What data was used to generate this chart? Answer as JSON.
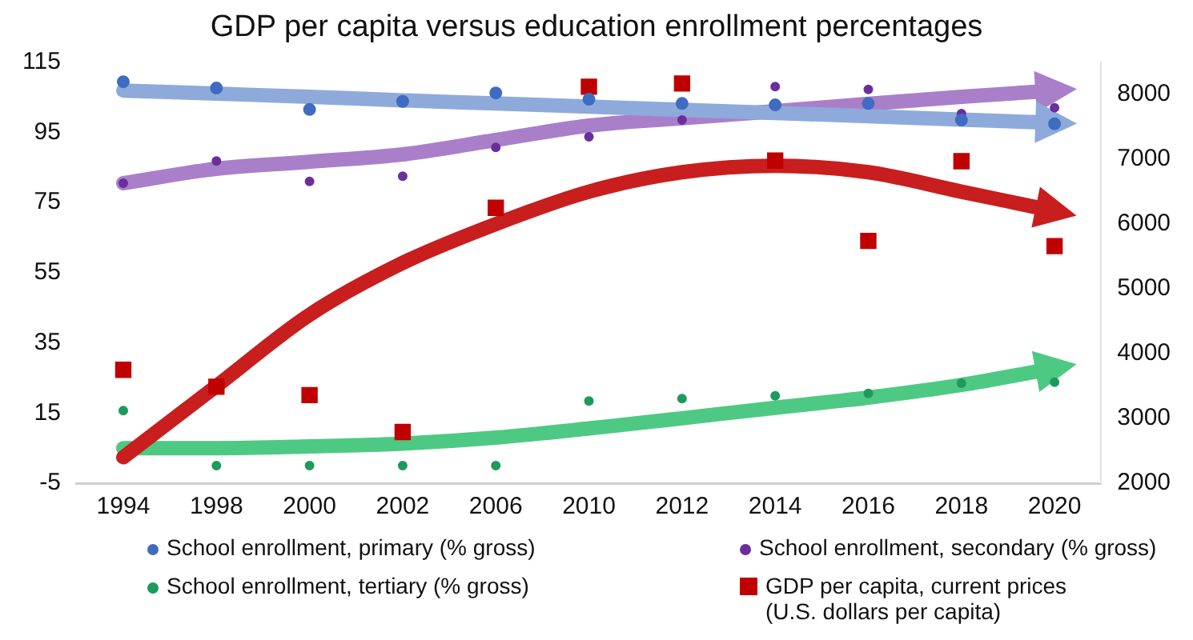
{
  "chart_data": {
    "type": "scatter",
    "title": "GDP per capita versus education enrollment percentages",
    "categories": [
      "1994",
      "1998",
      "2000",
      "2002",
      "2006",
      "2010",
      "2012",
      "2014",
      "2016",
      "2018",
      "2020"
    ],
    "series": [
      {
        "name": "School enrollment, primary (% gross)",
        "color": "#3f6cc0",
        "marker": "circle",
        "values": [
          109.4,
          107.6,
          101.5,
          103.8,
          106.2,
          104.4,
          103.2,
          102.8,
          103.2,
          98.5,
          97.4
        ]
      },
      {
        "name": "School enrollment, secondary (% gross)",
        "color": "#6a2f9c",
        "marker": "circle",
        "values": [
          80.5,
          86.8,
          81,
          82.5,
          90.7,
          93.7,
          98.5,
          108,
          107.2,
          100.3,
          102
        ]
      },
      {
        "name": "School enrollment, tertiary (% gross)",
        "color": "#1e9a5a",
        "marker": "circle",
        "values": [
          15.7,
          0,
          0,
          0,
          0,
          18.4,
          19.1,
          19.9,
          20.6,
          23.5,
          23.8
        ]
      },
      {
        "name": "GDP per capita, current prices (U.S. dollars per capita)",
        "color": "#c00000",
        "marker": "square",
        "axis": "y2",
        "values": [
          3750,
          3490,
          3360,
          2790,
          6250,
          8120,
          8170,
          6980,
          5740,
          6970,
          5660
        ]
      },
      {
        "type": "line",
        "color": "#8eaadb",
        "marker": "none",
        "values": [
          106.9,
          106,
          105.1,
          104.1,
          103.2,
          102.3,
          101.4,
          100.5,
          99.6,
          98.6,
          97.7
        ]
      },
      {
        "type": "line",
        "color": "#a97fca",
        "marker": "none",
        "values": [
          80.5,
          84.6,
          86.6,
          88.7,
          92.8,
          96.9,
          99,
          101,
          103.1,
          105.1,
          106.9
        ]
      },
      {
        "type": "line",
        "color": "#c81e1e",
        "marker": "none",
        "axis": "y2",
        "values": [
          2400,
          3500,
          4600,
          5400,
          6000,
          6500,
          6800,
          6900,
          6800,
          6500,
          6200
        ]
      },
      {
        "type": "line",
        "color": "#4ec983",
        "marker": "none",
        "values": [
          5,
          5,
          5.5,
          6.3,
          8,
          10.6,
          13.5,
          16.5,
          19.4,
          23,
          27.8
        ]
      }
    ],
    "ylim": [
      -5,
      115
    ],
    "yticks": [
      -5,
      15,
      35,
      55,
      75,
      95,
      115
    ],
    "y2lim": [
      2000,
      8500
    ],
    "y2ticks": [
      2000,
      3000,
      4000,
      5000,
      6000,
      7000,
      8000
    ],
    "grid": false,
    "legend": "bottom"
  }
}
